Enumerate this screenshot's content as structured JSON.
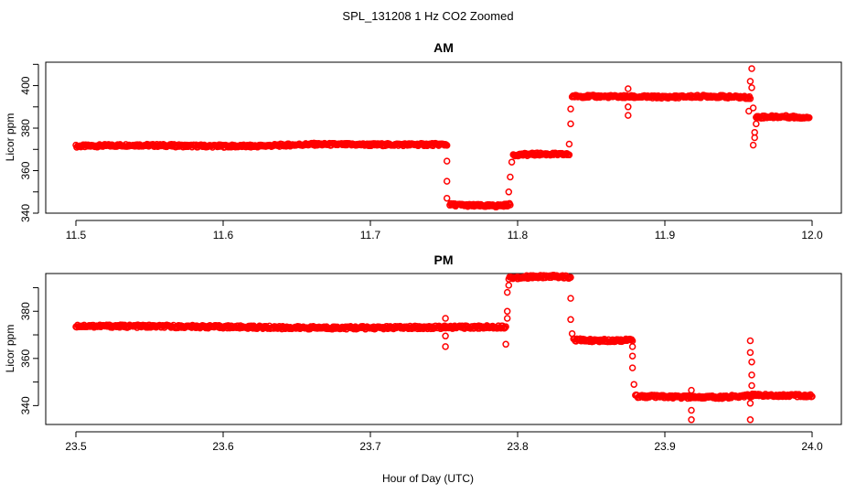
{
  "figure": {
    "title": "SPL_131208  1 Hz CO2 Zoomed",
    "xlabel": "Hour of Day (UTC)"
  },
  "chart_data": [
    {
      "type": "scatter",
      "title": "AM",
      "xlabel": "",
      "ylabel": "Licor ppm",
      "xlim": [
        11.5,
        12.0
      ],
      "ylim": [
        340,
        411
      ],
      "x_ticks": [
        "11.5",
        "11.6",
        "11.7",
        "11.8",
        "11.9",
        "12.0"
      ],
      "y_ticks": [
        "340",
        "360",
        "380",
        "400"
      ],
      "marker_color": "#ff0000",
      "segments": [
        {
          "x": [
            11.5,
            11.54,
            11.58,
            11.62,
            11.66,
            11.7,
            11.752
          ],
          "y": [
            371.5,
            372.0,
            371.6,
            371.5,
            372.4,
            372.2,
            372.3
          ]
        },
        {
          "x": [
            11.754,
            11.77,
            11.785,
            11.795
          ],
          "y": [
            344.0,
            343.6,
            343.4,
            344.0
          ]
        },
        {
          "x": [
            11.797,
            11.815,
            11.835
          ],
          "y": [
            367.4,
            367.8,
            367.6
          ]
        },
        {
          "x": [
            11.837,
            11.87,
            11.9,
            11.93,
            11.958
          ],
          "y": [
            395.0,
            394.8,
            394.6,
            395.0,
            394.4
          ]
        },
        {
          "x": [
            11.962,
            11.98,
            11.998
          ],
          "y": [
            385.2,
            385.4,
            385.0
          ]
        }
      ],
      "outliers": [
        {
          "x": 11.752,
          "y": 364.5
        },
        {
          "x": 11.752,
          "y": 355.0
        },
        {
          "x": 11.752,
          "y": 347.0
        },
        {
          "x": 11.796,
          "y": 364.0
        },
        {
          "x": 11.795,
          "y": 357.0
        },
        {
          "x": 11.794,
          "y": 350.0
        },
        {
          "x": 11.835,
          "y": 372.5
        },
        {
          "x": 11.836,
          "y": 382.0
        },
        {
          "x": 11.836,
          "y": 389.0
        },
        {
          "x": 11.875,
          "y": 398.5
        },
        {
          "x": 11.875,
          "y": 386.0
        },
        {
          "x": 11.875,
          "y": 390.0
        },
        {
          "x": 11.959,
          "y": 408.0
        },
        {
          "x": 11.958,
          "y": 402.0
        },
        {
          "x": 11.959,
          "y": 399.0
        },
        {
          "x": 11.96,
          "y": 389.5
        },
        {
          "x": 11.961,
          "y": 378.0
        },
        {
          "x": 11.961,
          "y": 375.5
        },
        {
          "x": 11.96,
          "y": 372.0
        },
        {
          "x": 11.962,
          "y": 382.0
        },
        {
          "x": 11.957,
          "y": 388.0
        }
      ]
    },
    {
      "type": "scatter",
      "title": "PM",
      "xlabel": "",
      "ylabel": "Licor ppm",
      "xlim": [
        23.5,
        24.0
      ],
      "ylim": [
        332,
        396
      ],
      "x_ticks": [
        "23.5",
        "23.6",
        "23.7",
        "23.8",
        "23.9",
        "24.0"
      ],
      "y_ticks": [
        "340",
        "360",
        "380"
      ],
      "marker_color": "#ff0000",
      "segments": [
        {
          "x": [
            23.5,
            23.55,
            23.6,
            23.65,
            23.7,
            23.75,
            23.792
          ],
          "y": [
            373.8,
            373.6,
            373.4,
            373.0,
            373.0,
            373.2,
            373.4
          ]
        },
        {
          "x": [
            23.794,
            23.81,
            23.825,
            23.836
          ],
          "y": [
            394.2,
            394.6,
            394.8,
            394.4
          ]
        },
        {
          "x": [
            23.838,
            23.855,
            23.878
          ],
          "y": [
            367.8,
            367.6,
            367.8
          ]
        },
        {
          "x": [
            23.88,
            23.91,
            23.94,
            23.96,
            24.0
          ],
          "y": [
            344.0,
            343.6,
            343.6,
            344.4,
            344.2
          ]
        }
      ],
      "outliers": [
        {
          "x": 23.751,
          "y": 377.0
        },
        {
          "x": 23.751,
          "y": 369.5
        },
        {
          "x": 23.751,
          "y": 365.0
        },
        {
          "x": 23.792,
          "y": 366.0
        },
        {
          "x": 23.793,
          "y": 377.0
        },
        {
          "x": 23.793,
          "y": 380.0
        },
        {
          "x": 23.793,
          "y": 388.0
        },
        {
          "x": 23.794,
          "y": 391.0
        },
        {
          "x": 23.836,
          "y": 385.5
        },
        {
          "x": 23.836,
          "y": 376.5
        },
        {
          "x": 23.837,
          "y": 370.5
        },
        {
          "x": 23.878,
          "y": 365.0
        },
        {
          "x": 23.878,
          "y": 361.0
        },
        {
          "x": 23.878,
          "y": 356.0
        },
        {
          "x": 23.879,
          "y": 349.0
        },
        {
          "x": 23.918,
          "y": 346.5
        },
        {
          "x": 23.918,
          "y": 338.0
        },
        {
          "x": 23.918,
          "y": 334.0
        },
        {
          "x": 23.958,
          "y": 367.5
        },
        {
          "x": 23.958,
          "y": 362.5
        },
        {
          "x": 23.959,
          "y": 358.5
        },
        {
          "x": 23.959,
          "y": 353.0
        },
        {
          "x": 23.959,
          "y": 348.5
        },
        {
          "x": 23.958,
          "y": 341.0
        },
        {
          "x": 23.958,
          "y": 334.0
        }
      ]
    }
  ]
}
